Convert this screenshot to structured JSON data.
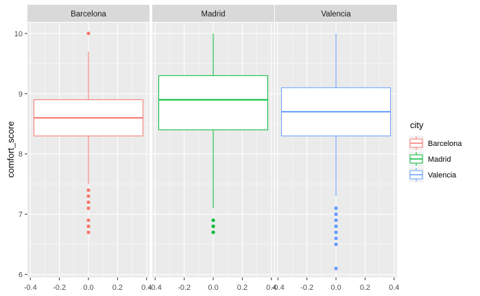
{
  "chart_data": {
    "type": "boxplot",
    "facet_by": "city",
    "ylabel": "comfort_score",
    "xlabel": "",
    "ylim": [
      5.95,
      10.18
    ],
    "xlim": [
      -0.42,
      0.42
    ],
    "y_ticks": [
      6,
      7,
      8,
      9,
      10
    ],
    "x_ticks": [
      -0.4,
      -0.2,
      0.0,
      0.2,
      0.4
    ],
    "x_tick_labels": [
      "-0.4",
      "-0.2",
      "0.0",
      "0.2",
      "0.4"
    ],
    "grid": true,
    "legend": {
      "title": "city",
      "position": "right"
    },
    "box_half_width": 0.375,
    "series": [
      {
        "name": "Barcelona",
        "color": "#F8766D",
        "x": 0.0,
        "q1": 8.3,
        "median": 8.6,
        "q3": 8.9,
        "whisker_low": 7.5,
        "whisker_high": 9.7,
        "outliers": [
          10.0,
          7.4,
          7.3,
          7.2,
          7.1,
          6.9,
          6.8,
          6.7
        ]
      },
      {
        "name": "Madrid",
        "color": "#00BA38",
        "x": 0.0,
        "q1": 8.4,
        "median": 8.9,
        "q3": 9.3,
        "whisker_low": 7.1,
        "whisker_high": 10.0,
        "outliers": [
          6.9,
          6.8,
          6.7
        ]
      },
      {
        "name": "Valencia",
        "color": "#619CFF",
        "x": 0.0,
        "q1": 8.3,
        "median": 8.7,
        "q3": 9.1,
        "whisker_low": 7.3,
        "whisker_high": 10.0,
        "outliers": [
          7.1,
          7.0,
          6.9,
          6.8,
          6.7,
          6.6,
          6.5,
          6.1
        ]
      }
    ]
  }
}
